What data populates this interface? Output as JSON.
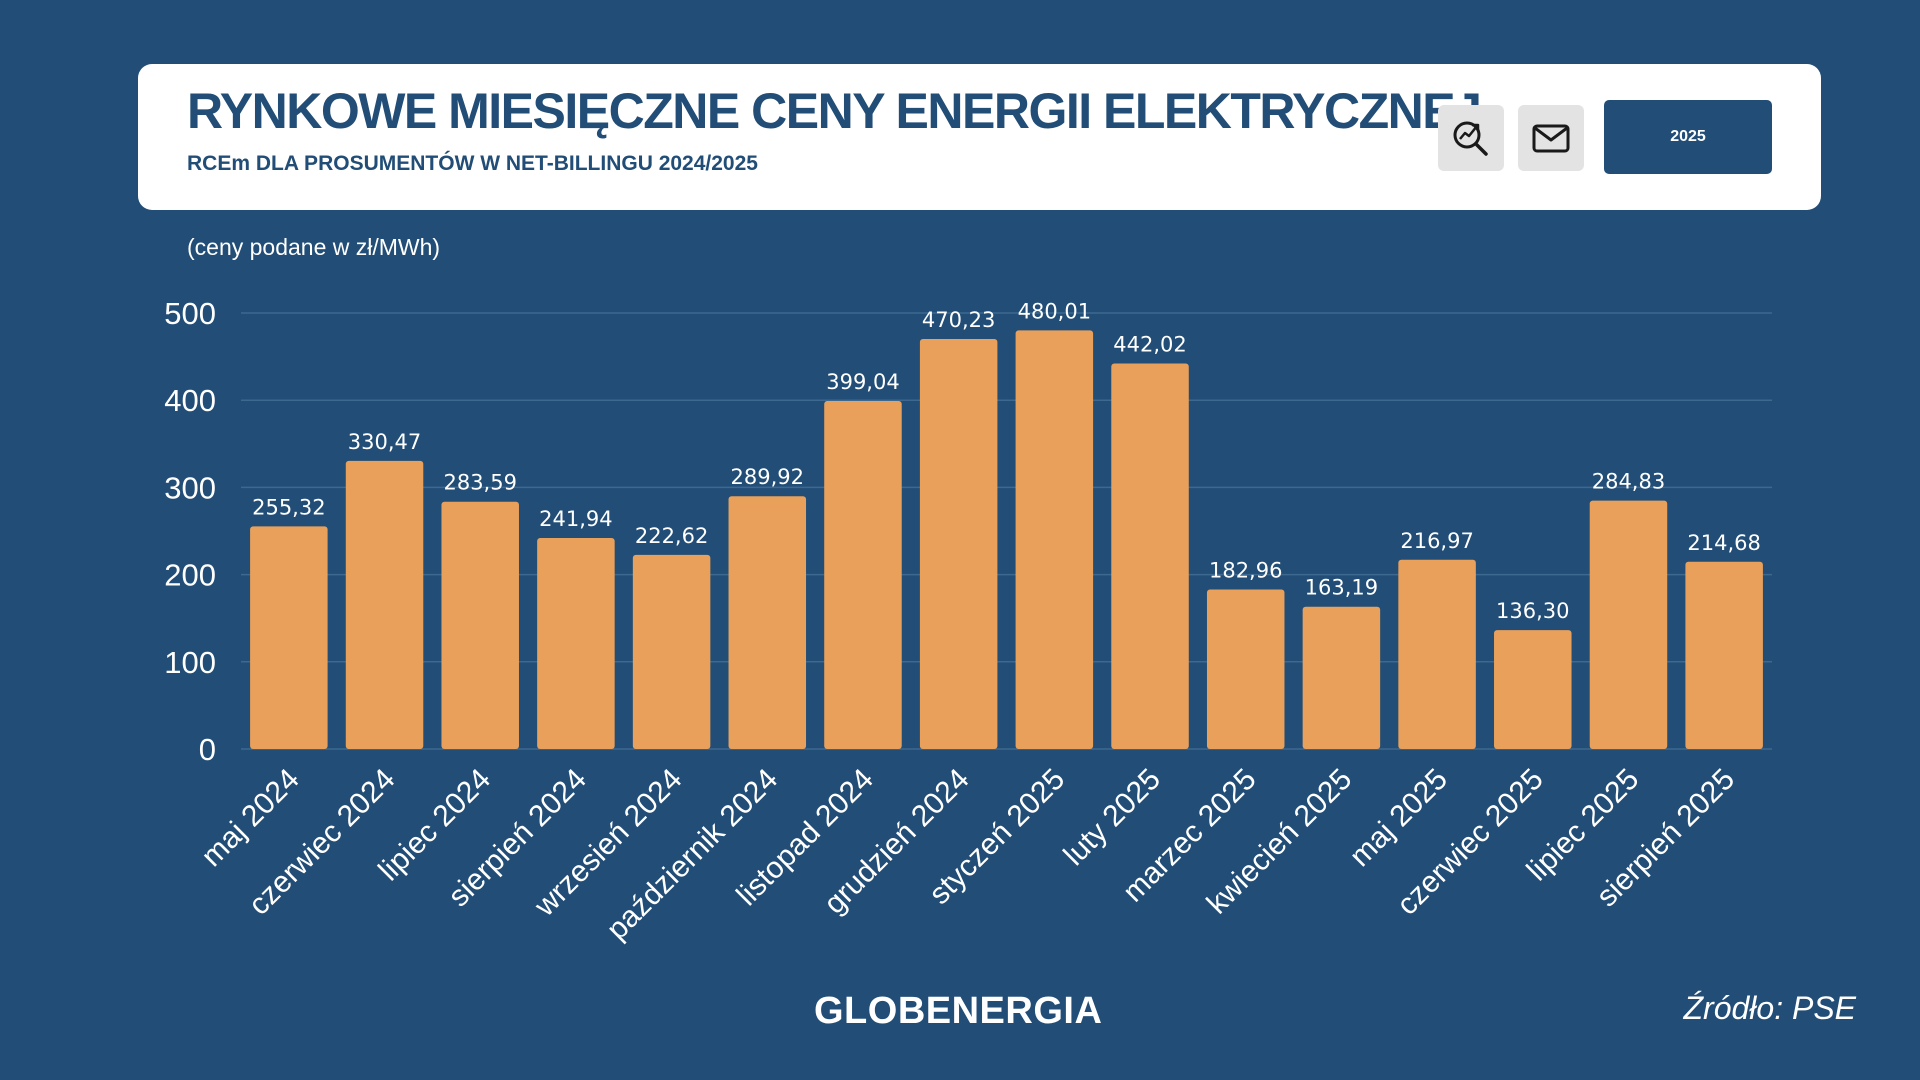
{
  "header": {
    "title": "RYNKOWE MIESIĘCZNE CENY ENERGII ELEKTRYCZNEJ",
    "subtitle": "RCEm DLA PROSUMENTÓW W NET-BILLINGU 2024/2025",
    "year_button": "2025",
    "icons": [
      "search-trend-icon",
      "mail-icon"
    ]
  },
  "unit_note": "(ceny podane w zł/MWh)",
  "footer": {
    "logo": "GLOBENERGIA",
    "source": "Źródło: PSE"
  },
  "colors": {
    "background": "#214d76",
    "bar": "#e9a05b",
    "text": "#ffffff"
  },
  "chart_data": {
    "type": "bar",
    "title": "",
    "xlabel": "",
    "ylabel": "",
    "ylim": [
      0,
      500
    ],
    "yticks": [
      0,
      100,
      200,
      300,
      400,
      500
    ],
    "grid": true,
    "categories": [
      "maj 2024",
      "czerwiec 2024",
      "lipiec 2024",
      "sierpień 2024",
      "wrzesień 2024",
      "październik 2024",
      "listopad 2024",
      "grudzień 2024",
      "styczeń 2025",
      "luty 2025",
      "marzec 2025",
      "kwiecień 2025",
      "maj 2025",
      "czerwiec 2025",
      "lipiec 2025",
      "sierpień 2025"
    ],
    "values": [
      255.32,
      330.47,
      283.59,
      241.94,
      222.62,
      289.92,
      399.04,
      470.23,
      480.01,
      442.02,
      182.96,
      163.19,
      216.97,
      136.3,
      284.83,
      214.68
    ],
    "value_labels": [
      "255,32",
      "330,47",
      "283,59",
      "241,94",
      "222,62",
      "289,92",
      "399,04",
      "470,23",
      "480,01",
      "442,02",
      "182,96",
      "163,19",
      "216,97",
      "136,30",
      "284,83",
      "214,68"
    ]
  }
}
